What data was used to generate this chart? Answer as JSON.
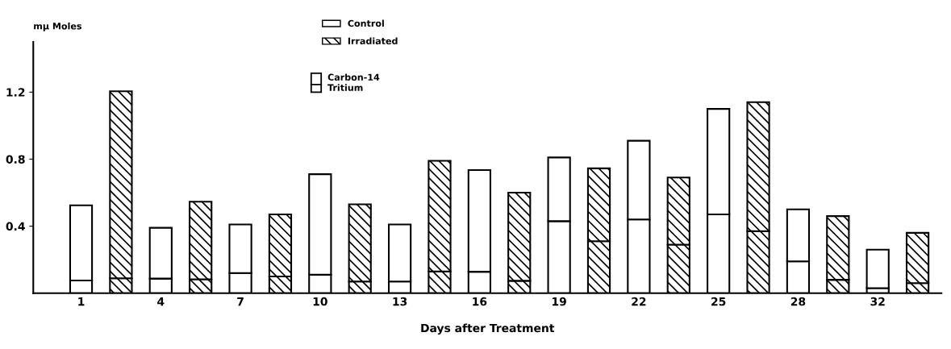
{
  "chart_data": {
    "type": "bar",
    "stacked": true,
    "ylabel": "mμ Moles",
    "xlabel": "Days after Treatment",
    "categories": [
      "1",
      null,
      "4",
      null,
      "7",
      null,
      "10",
      null,
      "13",
      null,
      "16",
      null,
      "19",
      null,
      "22",
      null,
      "25",
      null,
      "28",
      null,
      "32",
      null
    ],
    "series": [
      {
        "color": "#ffffff",
        "values": [
          0.076,
          null,
          0.087,
          null,
          0.12,
          null,
          0.11,
          null,
          0.07,
          null,
          0.128,
          null,
          0.43,
          null,
          0.44,
          null,
          0.47,
          null,
          0.19,
          null,
          0.03,
          null
        ]
      },
      {
        "name": "Control",
        "color": "#ffffff",
        "values": [
          0.448,
          null,
          0.303,
          null,
          0.29,
          null,
          0.6,
          null,
          0.34,
          null,
          0.607,
          null,
          0.38,
          null,
          0.47,
          null,
          0.63,
          null,
          0.31,
          null,
          0.23,
          null
        ]
      },
      {
        "color": "#000000",
        "values": [
          null,
          0.089,
          null,
          0.083,
          null,
          0.1,
          null,
          0.07,
          null,
          0.13,
          null,
          0.074,
          null,
          0.31,
          null,
          0.29,
          null,
          0.37,
          null,
          0.08,
          null,
          0.06
        ]
      },
      {
        "name": "Irradiated",
        "color": "#000000",
        "values": [
          null,
          1.116,
          null,
          0.463,
          null,
          0.37,
          null,
          0.46,
          null,
          0.66,
          null,
          0.526,
          null,
          0.435,
          null,
          0.4,
          null,
          0.77,
          null,
          0.38,
          null,
          0.3
        ]
      }
    ],
    "annotations": [
      "Carbon-14",
      "Tritium"
    ],
    "ylim": [
      0,
      1.5
    ],
    "yticks": [
      0.4,
      0.8,
      1.2
    ],
    "grid": false,
    "legend": "top"
  }
}
